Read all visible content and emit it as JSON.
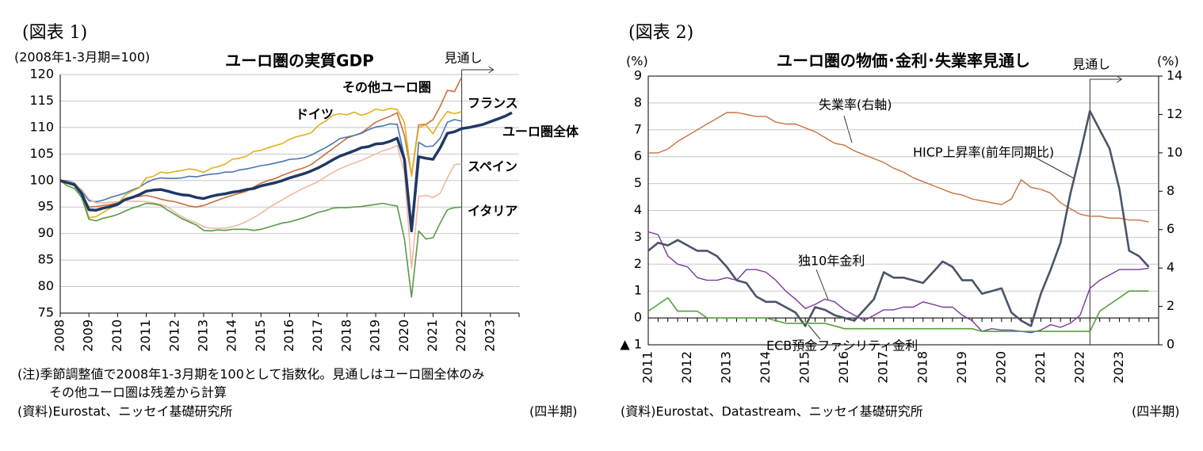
{
  "chart_data": [
    {
      "type": "line",
      "figure_label": "(図表 1)",
      "title": "ユーロ圏の実質GDP",
      "y_label": "(2008年1-3月期=100)",
      "forecast_label": "見通し",
      "notes": [
        "(注)季節調整値で2008年1-3月期を100として指数化。見通しはユーロ圏全体のみ",
        "その他ユーロ圏は残差から計算"
      ],
      "source": "(資料)Eurostat、ニッセイ基礎研究所",
      "x_unit": "(四半期)",
      "categories": [
        "2008",
        null,
        null,
        null,
        "2009",
        null,
        null,
        null,
        "2010",
        null,
        null,
        null,
        "2011",
        null,
        null,
        null,
        "2012",
        null,
        null,
        null,
        "2013",
        null,
        null,
        null,
        "2014",
        null,
        null,
        null,
        "2015",
        null,
        null,
        null,
        "2016",
        null,
        null,
        null,
        "2017",
        null,
        null,
        null,
        "2018",
        null,
        null,
        null,
        "2019",
        null,
        null,
        null,
        "2020",
        null,
        null,
        null,
        "2021",
        null,
        null,
        null,
        "2022",
        null,
        null,
        null,
        "2023",
        null,
        null,
        null
      ],
      "ylim": [
        75,
        120
      ],
      "yticks": [
        75,
        80,
        85,
        90,
        95,
        100,
        105,
        110,
        115,
        120
      ],
      "grid": true,
      "series": [
        {
          "name": "その他ユーロ圏",
          "color": "#c8703a",
          "values": [
            100,
            99.8,
            99.5,
            97.5,
            95,
            95.1,
            95.3,
            95.5,
            95.8,
            96.3,
            96.8,
            97,
            97.2,
            96.9,
            96.5,
            96.2,
            96,
            95.6,
            95.2,
            95,
            95.3,
            95.8,
            96.3,
            96.8,
            97.2,
            97.6,
            98,
            98.8,
            99.5,
            100,
            100.4,
            101,
            101.5,
            102,
            102.4,
            103,
            104,
            105,
            106,
            107,
            108,
            108.5,
            109,
            110,
            111,
            111.6,
            112.1,
            112.8,
            108.5,
            101,
            110.5,
            110.6,
            111.5,
            114,
            117,
            116.8,
            119.5,
            null,
            null,
            null,
            null,
            null,
            null,
            null
          ]
        },
        {
          "name": "フランス",
          "color": "#4a76b0",
          "values": [
            100,
            100,
            99.5,
            98,
            96.2,
            96,
            96.3,
            96.8,
            97.2,
            97.6,
            98.2,
            98.7,
            99.6,
            100.2,
            100.5,
            100.4,
            100.4,
            100.5,
            100.8,
            100.7,
            101,
            101.2,
            101.3,
            101.6,
            101.6,
            102,
            102.2,
            102.5,
            102.8,
            103,
            103.3,
            103.6,
            104,
            104.1,
            104.3,
            104.8,
            105.5,
            106.2,
            107,
            107.9,
            108.2,
            108.5,
            108.9,
            109.6,
            110.1,
            110.3,
            110.7,
            110.6,
            104.5,
            91,
            107.2,
            106.4,
            106.5,
            108,
            111,
            111.5,
            111.2,
            null,
            null,
            null,
            null,
            null,
            null,
            null
          ]
        },
        {
          "name": "ドイツ",
          "color": "#e0b020",
          "values": [
            100,
            99.5,
            99,
            97.5,
            93,
            93.2,
            94,
            94.8,
            95.5,
            97.2,
            98,
            98.6,
            100.5,
            100.8,
            101.6,
            101.4,
            101.7,
            101.9,
            102.2,
            102,
            101.5,
            102.3,
            102.6,
            103.1,
            104,
            104.2,
            104.6,
            105.5,
            105.7,
            106.2,
            106.6,
            107,
            107.8,
            108.3,
            108.6,
            109,
            110.4,
            111.2,
            112.3,
            112.6,
            112.4,
            112.9,
            112.3,
            112.7,
            113.5,
            113.2,
            113.6,
            113.4,
            111,
            100.8,
            110,
            110.5,
            108.8,
            111.2,
            113,
            112.6,
            113,
            null,
            null,
            null,
            null,
            null,
            null,
            null
          ]
        },
        {
          "name": "スペイン",
          "color": "#f0b8a0",
          "values": [
            100,
            99.9,
            99.4,
            98.3,
            96.5,
            95.8,
            95.8,
            95.9,
            96,
            96.2,
            96.1,
            96.1,
            96,
            95.8,
            95.5,
            95,
            94,
            93.2,
            92.5,
            92,
            91.3,
            91,
            91,
            91,
            91.3,
            91.7,
            92.3,
            93,
            93.8,
            94.8,
            95.6,
            96.4,
            97.2,
            97.9,
            98.6,
            99.2,
            99.8,
            100.7,
            101.5,
            102.2,
            102.8,
            103.3,
            103.8,
            104.4,
            105,
            105.6,
            106,
            106.6,
            101.5,
            83.5,
            97,
            97.2,
            96.8,
            97.6,
            100.5,
            103,
            103.2,
            null,
            null,
            null,
            null,
            null,
            null,
            null
          ]
        },
        {
          "name": "イタリア",
          "color": "#5a9a48",
          "values": [
            100,
            99,
            98.5,
            96.8,
            92.7,
            92.4,
            92.9,
            93.2,
            93.6,
            94.2,
            94.8,
            95.2,
            95.7,
            95.6,
            95.3,
            94.4,
            93.6,
            92.8,
            92.2,
            91.6,
            90.6,
            90.5,
            90.7,
            90.6,
            90.8,
            90.8,
            90.8,
            90.6,
            90.8,
            91.2,
            91.6,
            92,
            92.2,
            92.6,
            93,
            93.5,
            94,
            94.3,
            94.8,
            94.9,
            94.9,
            95,
            95.1,
            95.3,
            95.5,
            95.7,
            95.4,
            95.2,
            89,
            78,
            90.5,
            89,
            89.2,
            92,
            94.5,
            94.9,
            95,
            null,
            null,
            null,
            null,
            null,
            null,
            null
          ]
        },
        {
          "name": "ユーロ圏全体",
          "color": "#1f3864",
          "values": [
            100,
            99.6,
            99.2,
            97.5,
            94.5,
            94.4,
            94.8,
            95.1,
            95.5,
            96.4,
            96.8,
            97.3,
            98,
            98.2,
            98.3,
            98,
            97.6,
            97.3,
            97.2,
            96.8,
            96.6,
            97,
            97.3,
            97.5,
            97.8,
            98,
            98.3,
            98.5,
            99,
            99.3,
            99.6,
            100,
            100.5,
            100.9,
            101.3,
            101.8,
            102.4,
            103.1,
            103.9,
            104.6,
            105.1,
            105.6,
            106.2,
            106.4,
            106.9,
            107,
            107.4,
            108,
            104,
            90.5,
            104.5,
            104.2,
            104,
            106.2,
            108.9,
            109.2,
            109.8,
            110,
            110.3,
            110.6,
            111.1,
            111.6,
            112.1,
            112.8
          ]
        }
      ]
    },
    {
      "type": "line",
      "figure_label": "(図表 2)",
      "title": "ユーロ圏の物価･金利･失業率見通し",
      "y_label": "(%)",
      "y2_label": "(%)",
      "forecast_label": "見通し",
      "source": "(資料)Eurostat、Datastream、ニッセイ基礎研究所",
      "x_unit": "(四半期)",
      "categories": [
        "2011",
        null,
        null,
        null,
        "2012",
        null,
        null,
        null,
        "2013",
        null,
        null,
        null,
        "2014",
        null,
        null,
        null,
        "2015",
        null,
        null,
        null,
        "2016",
        null,
        null,
        null,
        "2017",
        null,
        null,
        null,
        "2018",
        null,
        null,
        null,
        "2019",
        null,
        null,
        null,
        "2020",
        null,
        null,
        null,
        "2021",
        null,
        null,
        null,
        "2022",
        null,
        null,
        null,
        "2023",
        null,
        null,
        null
      ],
      "ylim": [
        -1,
        9
      ],
      "yticks": [
        {
          "value": -1,
          "label": "▲ 1"
        },
        0,
        1,
        2,
        3,
        4,
        5,
        6,
        7,
        8,
        9
      ],
      "y2lim": [
        0,
        14
      ],
      "y2ticks": [
        0,
        2,
        4,
        6,
        8,
        10,
        12,
        14
      ],
      "grid": true,
      "series": [
        {
          "name": "失業率(右軸)",
          "color": "#c87040",
          "axis": "y2",
          "values": [
            10,
            10,
            10.2,
            10.6,
            10.9,
            11.2,
            11.5,
            11.8,
            12.1,
            12.1,
            12,
            11.9,
            11.9,
            11.6,
            11.5,
            11.5,
            11.3,
            11.1,
            10.8,
            10.5,
            10.4,
            10.1,
            9.9,
            9.7,
            9.5,
            9.2,
            9,
            8.7,
            8.5,
            8.3,
            8.1,
            7.9,
            7.8,
            7.6,
            7.5,
            7.4,
            7.3,
            7.6,
            8.6,
            8.2,
            8.1,
            7.9,
            7.4,
            7.1,
            6.8,
            6.7,
            6.7,
            6.6,
            6.6,
            6.5,
            6.5,
            6.4
          ]
        },
        {
          "name": "HICP上昇率(前年同期比)",
          "color": "#4a5568",
          "values": [
            2.5,
            2.8,
            2.7,
            2.9,
            2.7,
            2.5,
            2.5,
            2.3,
            1.9,
            1.4,
            1.3,
            0.8,
            0.6,
            0.6,
            0.4,
            0.2,
            -0.3,
            0.4,
            0.3,
            0.1,
            0,
            -0.1,
            0.3,
            0.7,
            1.7,
            1.5,
            1.5,
            1.4,
            1.3,
            1.7,
            2.1,
            1.9,
            1.4,
            1.4,
            0.9,
            1,
            1.1,
            0.2,
            -0.1,
            -0.3,
            0.9,
            1.8,
            2.8,
            4.6,
            6.1,
            7.7,
            7,
            6.3,
            4.8,
            2.5,
            2.3,
            1.9
          ]
        },
        {
          "name": "独10年金利",
          "color": "#7a3a9a",
          "values": [
            3.2,
            3.1,
            2.3,
            2,
            1.9,
            1.5,
            1.4,
            1.4,
            1.5,
            1.4,
            1.8,
            1.8,
            1.7,
            1.4,
            1,
            0.7,
            0.35,
            0.5,
            0.7,
            0.6,
            0.3,
            0.1,
            -0.1,
            0.1,
            0.3,
            0.3,
            0.4,
            0.4,
            0.6,
            0.5,
            0.4,
            0.4,
            0.1,
            -0.1,
            -0.5,
            -0.4,
            -0.45,
            -0.45,
            -0.5,
            -0.55,
            -0.45,
            -0.25,
            -0.35,
            -0.2,
            0.1,
            1.1,
            1.4,
            1.6,
            1.8,
            1.8,
            1.8,
            1.85
          ]
        },
        {
          "name": "ECB預金ファシリティ金利",
          "color": "#5aa040",
          "values": [
            0.25,
            0.5,
            0.75,
            0.25,
            0.25,
            0.25,
            0,
            0,
            0,
            0,
            0,
            0,
            0,
            -0.1,
            -0.2,
            -0.2,
            -0.2,
            -0.2,
            -0.2,
            -0.3,
            -0.4,
            -0.4,
            -0.4,
            -0.4,
            -0.4,
            -0.4,
            -0.4,
            -0.4,
            -0.4,
            -0.4,
            -0.4,
            -0.4,
            -0.4,
            -0.4,
            -0.5,
            -0.5,
            -0.5,
            -0.5,
            -0.5,
            -0.5,
            -0.5,
            -0.5,
            -0.5,
            -0.5,
            -0.5,
            -0.5,
            0.25,
            0.5,
            0.75,
            1,
            1,
            1
          ]
        }
      ]
    }
  ]
}
